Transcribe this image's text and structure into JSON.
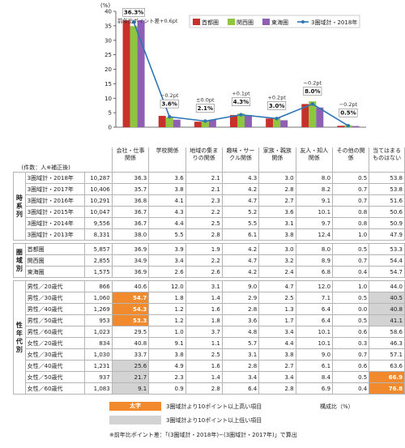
{
  "chart_data": {
    "type": "bar",
    "ylabel": "(%)",
    "ylim": [
      0,
      40
    ],
    "yticks": [
      0,
      5,
      10,
      15,
      20,
      25,
      30,
      35,
      40
    ],
    "categories": [
      "会社・仕事関係",
      "学校関係",
      "地域の集まりの関係",
      "趣味・サークル関係",
      "家族・親族関係",
      "友人・知人関係",
      "その他の関係"
    ],
    "category_header_last": "当てはまるものはない",
    "series": [
      {
        "name": "首都圏",
        "color": "#c8302b",
        "values": [
          36.9,
          3.9,
          1.9,
          4.2,
          3.0,
          8.0,
          0.5
        ]
      },
      {
        "name": "関西圏",
        "color": "#8dc63f",
        "values": [
          34.9,
          3.4,
          2.2,
          4.7,
          3.2,
          8.9,
          0.7
        ]
      },
      {
        "name": "東海圏",
        "color": "#8e5fb3",
        "values": [
          36.9,
          2.6,
          2.6,
          4.2,
          2.4,
          6.8,
          0.4
        ]
      },
      {
        "name": "3圏域計・2018年",
        "type": "line",
        "color": "#2e75b6",
        "values": [
          36.3,
          3.6,
          2.1,
          4.3,
          3.0,
          8.0,
          0.5
        ]
      }
    ],
    "point_labels": [
      "36.3%",
      "3.6%",
      "2.1%",
      "4.3%",
      "3.0%",
      "8.0%",
      "0.5%"
    ],
    "diff_header": "前年比ポイント差+0.6pt",
    "diff_labels": [
      "",
      "−0.2pt",
      "±0.0pt",
      "+0.1pt",
      "+0.2pt",
      "−0.2pt",
      "−0.2pt"
    ],
    "legend_position": "top-right"
  },
  "table": {
    "count_label": "(件数：人※補正後)",
    "sections": [
      {
        "label": "時系列",
        "rows": [
          {
            "label": "3圏域計・2018年",
            "n": "10,287",
            "values": [
              "36.3",
              "3.6",
              "2.1",
              "4.3",
              "3.0",
              "8.0",
              "0.5",
              "53.8"
            ],
            "hl": [
              "",
              "",
              "",
              "",
              "",
              "",
              "",
              ""
            ]
          },
          {
            "label": "3圏域計・2017年",
            "n": "10,406",
            "values": [
              "35.7",
              "3.8",
              "2.1",
              "4.2",
              "2.8",
              "8.2",
              "0.7",
              "53.8"
            ],
            "hl": [
              "",
              "",
              "",
              "",
              "",
              "",
              "",
              ""
            ]
          },
          {
            "label": "3圏域計・2016年",
            "n": "10,291",
            "values": [
              "36.8",
              "4.1",
              "2.3",
              "4.7",
              "2.7",
              "9.1",
              "0.7",
              "51.6"
            ],
            "hl": [
              "",
              "",
              "",
              "",
              "",
              "",
              "",
              ""
            ]
          },
          {
            "label": "3圏域計・2015年",
            "n": "10,047",
            "values": [
              "36.7",
              "4.3",
              "2.2",
              "5.2",
              "3.6",
              "10.1",
              "0.8",
              "50.6"
            ],
            "hl": [
              "",
              "",
              "",
              "",
              "",
              "",
              "",
              ""
            ]
          },
          {
            "label": "3圏域計・2014年",
            "n": "9,556",
            "values": [
              "36.7",
              "4.4",
              "2.5",
              "5.5",
              "3.1",
              "9.7",
              "0.8",
              "50.9"
            ],
            "hl": [
              "",
              "",
              "",
              "",
              "",
              "",
              "",
              ""
            ]
          },
          {
            "label": "3圏域計・2013年",
            "n": "8,331",
            "values": [
              "38.0",
              "5.5",
              "2.8",
              "6.1",
              "3.8",
              "12.4",
              "1.0",
              "47.9"
            ],
            "hl": [
              "",
              "",
              "",
              "",
              "",
              "",
              "",
              ""
            ]
          }
        ]
      },
      {
        "label": "圏域別",
        "rows": [
          {
            "label": "首都圏",
            "n": "5,857",
            "values": [
              "36.9",
              "3.9",
              "1.9",
              "4.2",
              "3.0",
              "8.0",
              "0.5",
              "53.3"
            ],
            "hl": [
              "",
              "",
              "",
              "",
              "",
              "",
              "",
              ""
            ]
          },
          {
            "label": "関西圏",
            "n": "2,855",
            "values": [
              "34.9",
              "3.4",
              "2.2",
              "4.7",
              "3.2",
              "8.9",
              "0.7",
              "54.4"
            ],
            "hl": [
              "",
              "",
              "",
              "",
              "",
              "",
              "",
              ""
            ]
          },
          {
            "label": "東海圏",
            "n": "1,575",
            "values": [
              "36.9",
              "2.6",
              "2.6",
              "4.2",
              "2.4",
              "6.8",
              "0.4",
              "54.7"
            ],
            "hl": [
              "",
              "",
              "",
              "",
              "",
              "",
              "",
              ""
            ]
          }
        ]
      },
      {
        "label": "性年代別",
        "rows": [
          {
            "label": "男性／20歳代",
            "n": "866",
            "values": [
              "40.6",
              "12.0",
              "3.1",
              "9.0",
              "4.7",
              "12.0",
              "1.0",
              "44.0"
            ],
            "hl": [
              "",
              "",
              "",
              "",
              "",
              "",
              "",
              ""
            ]
          },
          {
            "label": "男性／30歳代",
            "n": "1,060",
            "values": [
              "54.7",
              "1.8",
              "1.4",
              "2.9",
              "2.5",
              "7.1",
              "0.5",
              "40.5"
            ],
            "hl": [
              "hi",
              "",
              "",
              "",
              "",
              "",
              "",
              "lo"
            ]
          },
          {
            "label": "男性／40歳代",
            "n": "1,269",
            "values": [
              "54.3",
              "1.2",
              "1.6",
              "2.8",
              "1.3",
              "6.4",
              "0.0",
              "40.8"
            ],
            "hl": [
              "hi",
              "",
              "",
              "",
              "",
              "",
              "",
              "lo"
            ]
          },
          {
            "label": "男性／50歳代",
            "n": "953",
            "values": [
              "53.3",
              "1.2",
              "1.8",
              "3.6",
              "1.7",
              "6.4",
              "0.5",
              "41.1"
            ],
            "hl": [
              "hi",
              "",
              "",
              "",
              "",
              "",
              "",
              "lo"
            ]
          },
          {
            "label": "男性／60歳代",
            "n": "1,023",
            "values": [
              "29.5",
              "1.0",
              "3.7",
              "4.8",
              "3.4",
              "10.1",
              "0.6",
              "58.6"
            ],
            "hl": [
              "",
              "",
              "",
              "",
              "",
              "",
              "",
              ""
            ]
          },
          {
            "label": "女性／20歳代",
            "n": "834",
            "values": [
              "40.8",
              "9.1",
              "1.1",
              "5.7",
              "4.4",
              "10.1",
              "0.3",
              "46.3"
            ],
            "hl": [
              "",
              "",
              "",
              "",
              "",
              "",
              "",
              ""
            ]
          },
          {
            "label": "女性／30歳代",
            "n": "1,030",
            "values": [
              "33.7",
              "3.8",
              "2.5",
              "3.1",
              "3.8",
              "9.0",
              "0.7",
              "57.1"
            ],
            "hl": [
              "",
              "",
              "",
              "",
              "",
              "",
              "",
              ""
            ]
          },
          {
            "label": "女性／40歳代",
            "n": "1,231",
            "values": [
              "25.6",
              "4.9",
              "1.6",
              "2.8",
              "2.7",
              "6.1",
              "0.6",
              "63.6"
            ],
            "hl": [
              "lo",
              "",
              "",
              "",
              "",
              "",
              "",
              ""
            ]
          },
          {
            "label": "女性／50歳代",
            "n": "937",
            "values": [
              "21.7",
              "2.3",
              "1.4",
              "3.4",
              "3.4",
              "8.4",
              "0.5",
              "66.9"
            ],
            "hl": [
              "lo",
              "",
              "",
              "",
              "",
              "",
              "",
              "hi"
            ]
          },
          {
            "label": "女性／60歳代",
            "n": "1,083",
            "values": [
              "9.1",
              "0.9",
              "2.8",
              "6.4",
              "2.8",
              "6.9",
              "0.4",
              "76.8"
            ],
            "hl": [
              "lo",
              "",
              "",
              "",
              "",
              "",
              "",
              "hi"
            ]
          }
        ]
      }
    ]
  },
  "footnotes": {
    "hi_swatch_text": "太字",
    "hi_desc": "3圏域計より10ポイント以上高い項目",
    "lo_desc": "3圏域計より10ポイント以上低い項目",
    "unit_note": "構成比（%）",
    "diff_note": "※前年比ポイント差：「(3圏域計・2018年)−(3圏域計・2017年)」で算出"
  }
}
